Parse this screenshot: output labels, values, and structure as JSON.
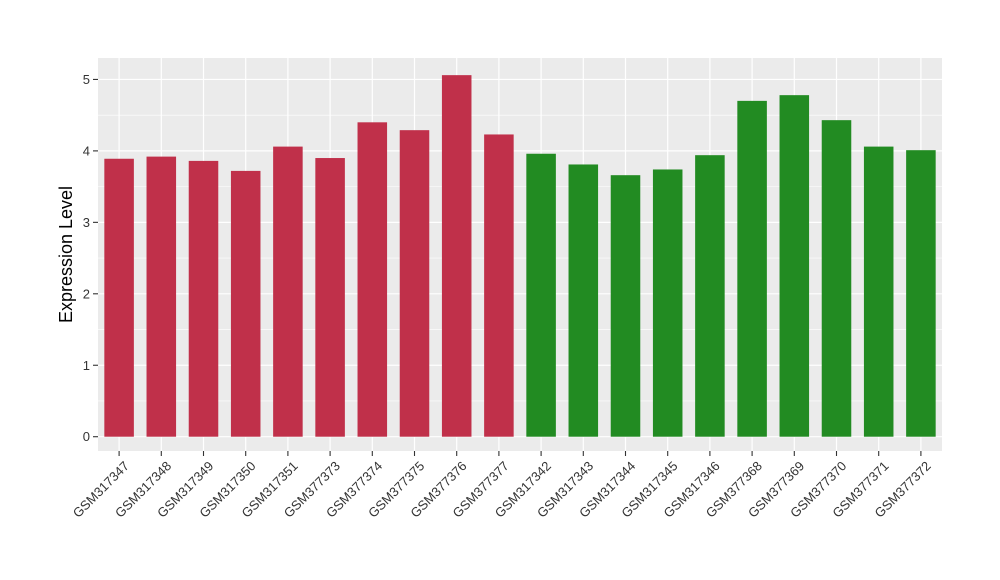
{
  "chart_data": {
    "type": "bar",
    "title": "",
    "xlabel": "",
    "ylabel": "Expression Level",
    "ylim": [
      -0.2,
      5.3
    ],
    "yticks": [
      0,
      1,
      2,
      3,
      4,
      5
    ],
    "grid": true,
    "categories": [
      "GSM317347",
      "GSM317348",
      "GSM317349",
      "GSM317350",
      "GSM317351",
      "GSM377373",
      "GSM377374",
      "GSM377375",
      "GSM377376",
      "GSM377377",
      "GSM317342",
      "GSM317343",
      "GSM317344",
      "GSM317345",
      "GSM317346",
      "GSM377368",
      "GSM377369",
      "GSM377370",
      "GSM377371",
      "GSM377372"
    ],
    "values": [
      3.89,
      3.92,
      3.86,
      3.72,
      4.06,
      3.9,
      4.4,
      4.29,
      5.06,
      4.23,
      3.96,
      3.81,
      3.66,
      3.74,
      3.94,
      4.7,
      4.78,
      4.43,
      4.06,
      4.01
    ],
    "colors": [
      "#c0304a",
      "#c0304a",
      "#c0304a",
      "#c0304a",
      "#c0304a",
      "#c0304a",
      "#c0304a",
      "#c0304a",
      "#c0304a",
      "#c0304a",
      "#228b22",
      "#228b22",
      "#228b22",
      "#228b22",
      "#228b22",
      "#228b22",
      "#228b22",
      "#228b22",
      "#228b22",
      "#228b22"
    ],
    "panel_background": "#ebebeb",
    "grid_color": "#ffffff"
  }
}
